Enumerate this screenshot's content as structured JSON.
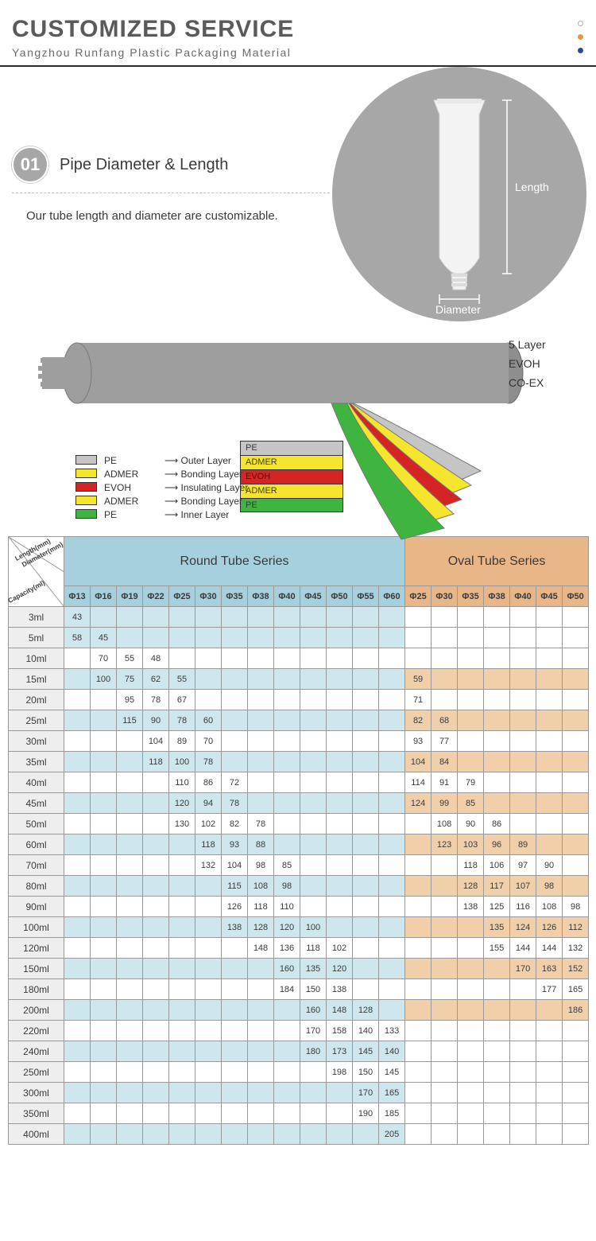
{
  "header": {
    "title": "CUSTOMIZED SERVICE",
    "subtitle": "Yangzhou Runfang Plastic Packaging Material",
    "dot_colors": [
      "#ffffff",
      "#e79a3a",
      "#2a4d8a"
    ]
  },
  "section1": {
    "badge": "01",
    "title": "Pipe Diameter & Length",
    "description": "Our tube length and diameter are customizable.",
    "label_length": "Length",
    "label_diameter": "Diameter",
    "circle_bg": "#a7a7a7"
  },
  "diagram": {
    "right_labels": [
      "5 Layer",
      "EVOH",
      "CO-EX"
    ],
    "layers": [
      {
        "name": "PE",
        "role": "Outer Layer",
        "color": "#c5c5c5"
      },
      {
        "name": "ADMER",
        "role": "Bonding Layer",
        "color": "#f5e52c"
      },
      {
        "name": "EVOH",
        "role": "Insulating Layer",
        "color": "#d52424"
      },
      {
        "name": "ADMER",
        "role": "Bonding Layer",
        "color": "#f5e52c"
      },
      {
        "name": "PE",
        "role": "Inner Layer",
        "color": "#3eb53e"
      }
    ]
  },
  "table": {
    "corner": {
      "diameter": "Diameter(mm)",
      "length": "Length(mm)",
      "capacity": "Capacity(ml)"
    },
    "round_title": "Round Tube Series",
    "oval_title": "Oval Tube Series",
    "round_diameters": [
      "Φ13",
      "Φ16",
      "Φ19",
      "Φ22",
      "Φ25",
      "Φ30",
      "Φ35",
      "Φ38",
      "Φ40",
      "Φ45",
      "Φ50",
      "Φ55",
      "Φ60"
    ],
    "oval_diameters": [
      "Φ25",
      "Φ30",
      "Φ35",
      "Φ38",
      "Φ40",
      "Φ45",
      "Φ50"
    ],
    "capacities": [
      "3ml",
      "5ml",
      "10ml",
      "15ml",
      "20ml",
      "25ml",
      "30ml",
      "35ml",
      "40ml",
      "45ml",
      "50ml",
      "60ml",
      "70ml",
      "80ml",
      "90ml",
      "100ml",
      "120ml",
      "150ml",
      "180ml",
      "200ml",
      "220ml",
      "240ml",
      "250ml",
      "300ml",
      "350ml",
      "400ml"
    ],
    "colors": {
      "round_header_bg": "#a6d0dd",
      "oval_header_bg": "#e9b787",
      "round_accent_bg": "#cee6ed",
      "oval_accent_bg": "#f1cfa8",
      "capacity_bg": "#eeeeee",
      "border": "#999999"
    },
    "round_data": {
      "3ml": {
        "Φ13": "43"
      },
      "5ml": {
        "Φ13": "58",
        "Φ16": "45"
      },
      "10ml": {
        "Φ16": "70",
        "Φ19": "55",
        "Φ22": "48"
      },
      "15ml": {
        "Φ16": "100",
        "Φ19": "75",
        "Φ22": "62",
        "Φ25": "55"
      },
      "20ml": {
        "Φ19": "95",
        "Φ22": "78",
        "Φ25": "67"
      },
      "25ml": {
        "Φ19": "115",
        "Φ22": "90",
        "Φ25": "78",
        "Φ30": "60"
      },
      "30ml": {
        "Φ22": "104",
        "Φ25": "89",
        "Φ30": "70"
      },
      "35ml": {
        "Φ22": "118",
        "Φ25": "100",
        "Φ30": "78"
      },
      "40ml": {
        "Φ25": "110",
        "Φ30": "86",
        "Φ35": "72"
      },
      "45ml": {
        "Φ25": "120",
        "Φ30": "94",
        "Φ35": "78"
      },
      "50ml": {
        "Φ25": "130",
        "Φ30": "102",
        "Φ35": "82",
        "Φ38": "78"
      },
      "60ml": {
        "Φ30": "118",
        "Φ35": "93",
        "Φ38": "88"
      },
      "70ml": {
        "Φ30": "132",
        "Φ35": "104",
        "Φ38": "98",
        "Φ40": "85"
      },
      "80ml": {
        "Φ35": "115",
        "Φ38": "108",
        "Φ40": "98"
      },
      "90ml": {
        "Φ35": "126",
        "Φ38": "118",
        "Φ40": "110"
      },
      "100ml": {
        "Φ35": "138",
        "Φ38": "128",
        "Φ40": "120",
        "Φ45": "100"
      },
      "120ml": {
        "Φ38": "148",
        "Φ40": "136",
        "Φ45": "118",
        "Φ50": "102"
      },
      "150ml": {
        "Φ40": "160",
        "Φ45": "135",
        "Φ50": "120"
      },
      "180ml": {
        "Φ40": "184",
        "Φ45": "150",
        "Φ50": "138"
      },
      "200ml": {
        "Φ45": "160",
        "Φ50": "148",
        "Φ55": "128"
      },
      "220ml": {
        "Φ45": "170",
        "Φ50": "158",
        "Φ55": "140",
        "Φ60": "133"
      },
      "240ml": {
        "Φ45": "180",
        "Φ50": "173",
        "Φ55": "145",
        "Φ60": "140"
      },
      "250ml": {
        "Φ50": "198",
        "Φ55": "150",
        "Φ60": "145"
      },
      "300ml": {
        "Φ55": "170",
        "Φ60": "165"
      },
      "350ml": {
        "Φ55": "190",
        "Φ60": "185"
      },
      "400ml": {
        "Φ60": "205"
      }
    },
    "oval_data": {
      "15ml": {
        "Φ25": "59"
      },
      "20ml": {
        "Φ25": "71"
      },
      "25ml": {
        "Φ25": "82",
        "Φ30": "68"
      },
      "30ml": {
        "Φ25": "93",
        "Φ30": "77"
      },
      "35ml": {
        "Φ25": "104",
        "Φ30": "84"
      },
      "40ml": {
        "Φ25": "114",
        "Φ30": "91",
        "Φ35": "79"
      },
      "45ml": {
        "Φ25": "124",
        "Φ30": "99",
        "Φ35": "85"
      },
      "50ml": {
        "Φ30": "108",
        "Φ35": "90",
        "Φ38": "86"
      },
      "60ml": {
        "Φ30": "123",
        "Φ35": "103",
        "Φ38": "96",
        "Φ40": "89"
      },
      "70ml": {
        "Φ35": "118",
        "Φ38": "106",
        "Φ40": "97",
        "Φ45": "90"
      },
      "80ml": {
        "Φ35": "128",
        "Φ38": "117",
        "Φ40": "107",
        "Φ45": "98"
      },
      "90ml": {
        "Φ35": "138",
        "Φ38": "125",
        "Φ40": "116",
        "Φ45": "108",
        "Φ50": "98"
      },
      "100ml": {
        "Φ38": "135",
        "Φ40": "124",
        "Φ45": "126",
        "Φ50": "112"
      },
      "120ml": {
        "Φ38": "155",
        "Φ40": "144",
        "Φ45": "144",
        "Φ50": "132"
      },
      "150ml": {
        "Φ40": "170",
        "Φ45": "163",
        "Φ50": "152"
      },
      "180ml": {
        "Φ45": "177",
        "Φ50": "165"
      },
      "200ml": {
        "Φ50": "186"
      }
    },
    "row_accent": {
      "round": [
        "3ml",
        "5ml",
        "15ml",
        "25ml",
        "35ml",
        "45ml",
        "60ml",
        "80ml",
        "100ml",
        "150ml",
        "200ml",
        "240ml",
        "300ml",
        "400ml"
      ],
      "oval": [
        "15ml",
        "25ml",
        "35ml",
        "45ml",
        "60ml",
        "80ml",
        "100ml",
        "150ml",
        "200ml"
      ]
    }
  }
}
